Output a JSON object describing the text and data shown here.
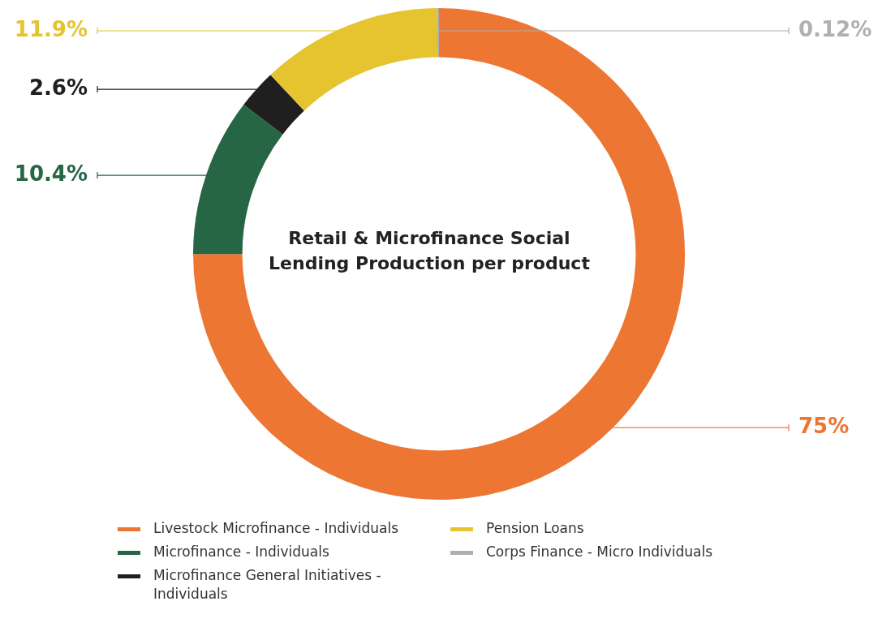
{
  "chart_data": {
    "type": "donut",
    "title": "Retail & Microfinance Social Lending Production per product",
    "categories": [
      "Livestock Microfinance - Individuals",
      "Microfinance - Individuals",
      "Microfinance General Initiatives - Individuals",
      "Pension Loans",
      "Corps Finance - Micro Individuals"
    ],
    "values": [
      75,
      10.4,
      2.6,
      11.9,
      0.12
    ],
    "value_labels": [
      "75%",
      "10.4%",
      "2.6%",
      "11.9%",
      "0.12%"
    ],
    "colors": [
      "#ed7633",
      "#266645",
      "#1f1f1f",
      "#e5c430",
      "#b0b0b0"
    ],
    "legend": "bottom"
  }
}
